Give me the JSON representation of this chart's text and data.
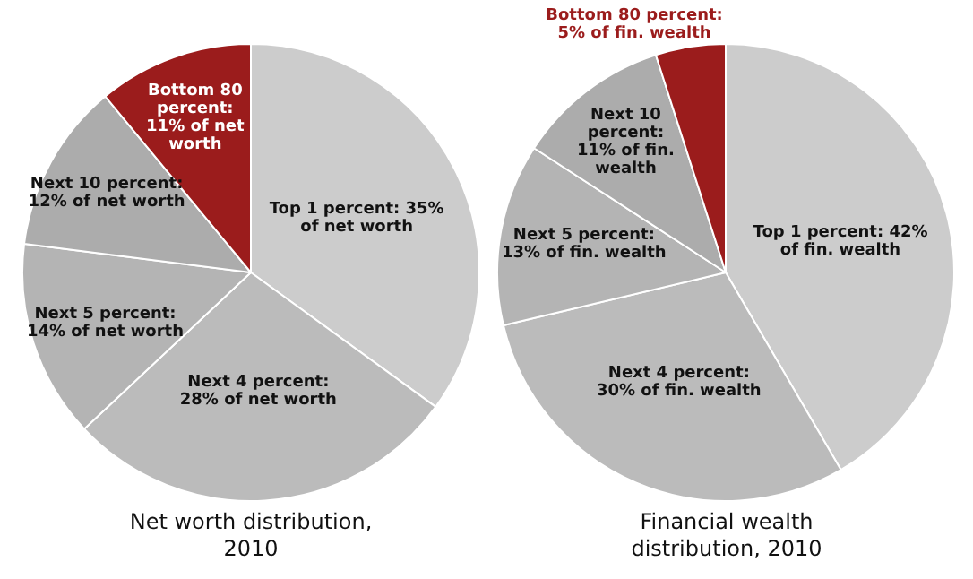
{
  "chart_data": [
    {
      "type": "pie",
      "title": "Net worth distribution, 2010",
      "categories": [
        null,
        null,
        null,
        null,
        null
      ],
      "values": [
        35,
        28,
        14,
        12,
        11
      ],
      "value_labels": [
        "Top 1 percent: 35% of net worth",
        "Next 4 percent: 28% of net worth",
        "Next 5 percent: 14% of net worth",
        "Next 10 percent: 12% of net worth",
        "Bottom 80 percent: 11% of net worth"
      ],
      "colors": [
        "#cccccc",
        "#bbbbbb",
        "#b4b4b4",
        "#acacac",
        "#9b1c1c"
      ]
    },
    {
      "type": "pie",
      "title": "Financial wealth distribution, 2010",
      "categories": [
        null,
        null,
        null,
        null,
        null
      ],
      "values": [
        42,
        30,
        13,
        11,
        5
      ],
      "value_labels": [
        "Top 1 percent: 42% of fin. wealth",
        "Next 4 percent: 30% of fin. wealth",
        "Next 5 percent: 13% of fin. wealth",
        "Next 10 percent: 11% of fin. wealth",
        "Bottom 80 percent: 5% of fin. wealth"
      ],
      "colors": [
        "#cccccc",
        "#bbbbbb",
        "#b4b4b4",
        "#acacac",
        "#9b1c1c"
      ]
    }
  ]
}
